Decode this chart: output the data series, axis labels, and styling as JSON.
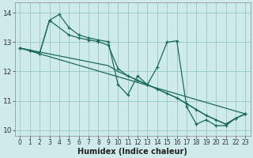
{
  "xlabel": "Humidex (Indice chaleur)",
  "bg_color": "#ceeaea",
  "grid_color": "#a0cccc",
  "line_color": "#1a6b5a",
  "xlim": [
    -0.5,
    23.5
  ],
  "ylim": [
    9.8,
    14.35
  ],
  "yticks": [
    10,
    11,
    12,
    13,
    14
  ],
  "xticks": [
    0,
    1,
    2,
    3,
    4,
    5,
    6,
    7,
    8,
    9,
    10,
    11,
    12,
    13,
    14,
    15,
    16,
    17,
    18,
    19,
    20,
    21,
    22,
    23
  ],
  "series_wiggly": {
    "x": [
      0,
      1,
      2,
      3,
      4,
      5,
      6,
      7,
      8,
      9,
      10,
      11,
      12,
      13,
      14,
      15,
      16,
      17,
      18,
      19,
      20,
      21,
      22,
      23
    ],
    "y": [
      12.8,
      12.72,
      12.62,
      13.75,
      13.95,
      13.5,
      13.25,
      13.15,
      13.08,
      13.02,
      11.55,
      11.2,
      11.85,
      11.55,
      12.15,
      13.0,
      13.05,
      10.8,
      10.2,
      10.35,
      10.15,
      10.15,
      10.4,
      10.55
    ]
  },
  "series_straight": {
    "x": [
      0,
      23
    ],
    "y": [
      12.8,
      10.55
    ]
  },
  "series_curved": {
    "x": [
      0,
      1,
      2,
      3,
      5,
      6,
      7,
      8,
      9,
      10,
      11,
      12,
      13,
      14,
      15,
      16,
      17,
      18,
      19,
      20,
      21,
      22,
      23
    ],
    "y": [
      12.8,
      12.72,
      12.62,
      13.75,
      13.25,
      13.15,
      13.08,
      13.02,
      12.9,
      12.1,
      11.85,
      11.7,
      11.55,
      11.4,
      11.25,
      11.1,
      10.9,
      10.7,
      10.5,
      10.35,
      10.2,
      10.4,
      10.55
    ]
  },
  "series_line2": {
    "x": [
      0,
      9,
      10,
      11,
      12,
      13,
      14,
      15,
      16,
      17,
      18,
      19,
      20,
      21,
      22,
      23
    ],
    "y": [
      12.8,
      12.2,
      12.0,
      11.85,
      11.7,
      11.55,
      11.4,
      11.25,
      11.1,
      10.9,
      10.7,
      10.5,
      10.35,
      10.2,
      10.4,
      10.55
    ]
  }
}
